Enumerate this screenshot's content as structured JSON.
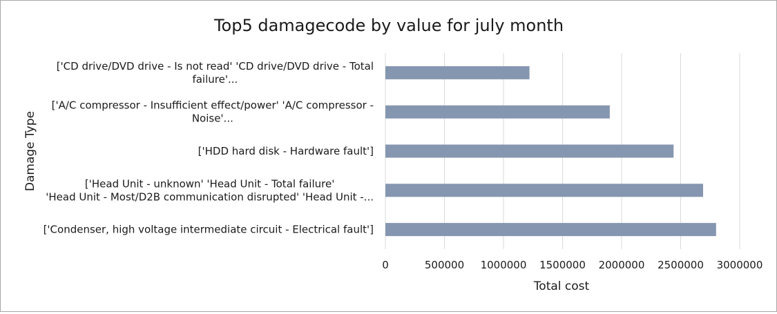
{
  "chart_data": {
    "type": "bar",
    "orientation": "horizontal",
    "title": "Top5 damagecode by value for july month",
    "xlabel": "Total cost",
    "ylabel": "Damage Type",
    "xlim": [
      0,
      3000000
    ],
    "xticks": [
      "0",
      "500000",
      "1000000",
      "1500000",
      "2000000",
      "2500000",
      "3000000"
    ],
    "xtick_values": [
      0,
      500000,
      1000000,
      1500000,
      2000000,
      2500000,
      3000000
    ],
    "grid": "vertical",
    "categories": [
      {
        "lines": [
          "['CD drive/DVD drive - Is not read' 'CD drive/DVD drive - Total",
          "failure'..."
        ]
      },
      {
        "lines": [
          "['A/C compressor - Insufficient effect/power' 'A/C compressor -",
          "Noise'..."
        ]
      },
      {
        "lines": [
          "['HDD hard disk - Hardware fault']"
        ]
      },
      {
        "lines": [
          "['Head Unit - unknown' 'Head Unit - Total failure'",
          "'Head Unit - Most/D2B communication disrupted' 'Head Unit -..."
        ]
      },
      {
        "lines": [
          "['Condenser, high voltage intermediate circuit - Electrical fault']"
        ]
      }
    ],
    "values": [
      1220000,
      1900000,
      2440000,
      2690000,
      2800000
    ],
    "bar_color": "#8596b0"
  }
}
